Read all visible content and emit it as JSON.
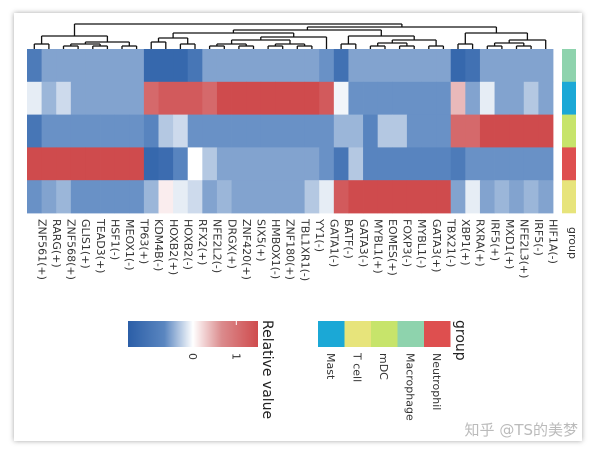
{
  "chart_data": {
    "type": "heatmap",
    "columns": [
      "ZNF561(+)",
      "RARG(+)",
      "ZNF568(+)",
      "GLIS1(+)",
      "TEAD3(+)",
      "HSF1(-)",
      "MEOX1(-)",
      "TP63(+)",
      "KDM4B(-)",
      "HOXB2(+)",
      "HOXB2(-)",
      "RFX2(+)",
      "NFE2L2(-)",
      "DRGX(+)",
      "ZNF420(+)",
      "SIX5(+)",
      "HMBOX1(-)",
      "ZNF180(+)",
      "TBL1XR1(-)",
      "YY1(-)",
      "GATA1(-)",
      "BATF(-)",
      "GATA3(-)",
      "MYBL1(+)",
      "EOMES(+)",
      "FOXP3(-)",
      "MYBL1(-)",
      "GATA3(+)",
      "TBX21(-)",
      "XBP1(+)",
      "RXRA(+)",
      "IRF5(+)",
      "MXD1(+)",
      "NFE2L3(+)",
      "IRF5(-)",
      "HIF1A(-)"
    ],
    "rows": [
      "Mast",
      "Neutrophil",
      "Macrophage",
      "mDC",
      "T cell"
    ],
    "values": [
      [
        -0.9,
        -0.5,
        -0.5,
        -0.5,
        -0.5,
        -0.5,
        -0.5,
        -0.5,
        -1.3,
        -1.3,
        -1.3,
        -1.0,
        -0.5,
        -0.5,
        -0.5,
        -0.5,
        -0.5,
        -0.5,
        -0.5,
        -0.5,
        -0.6,
        -1.1,
        -0.5,
        -0.5,
        -0.5,
        -0.5,
        -0.5,
        -0.5,
        -0.5,
        -1.3,
        -1.1,
        -0.5,
        -0.5,
        -0.5,
        -0.5,
        -0.5
      ],
      [
        -0.1,
        -0.4,
        -0.2,
        -0.5,
        -0.5,
        -0.5,
        -0.5,
        -0.5,
        1.1,
        1.3,
        1.3,
        1.3,
        1.1,
        1.5,
        1.5,
        1.5,
        1.5,
        1.5,
        1.5,
        1.5,
        1.3,
        -0.05,
        -0.6,
        -0.6,
        -0.6,
        -0.6,
        -0.6,
        -0.6,
        -0.6,
        0.4,
        -0.5,
        -0.1,
        -0.5,
        -0.5,
        -0.3,
        -0.5
      ],
      [
        -1.0,
        -0.6,
        -0.6,
        -0.6,
        -0.6,
        -0.6,
        -0.6,
        -0.6,
        -0.7,
        -0.3,
        -0.2,
        -0.6,
        -0.6,
        -0.6,
        -0.6,
        -0.6,
        -0.6,
        -0.6,
        -0.6,
        -0.6,
        -0.6,
        -0.4,
        -0.4,
        -0.7,
        -0.3,
        -0.3,
        -0.6,
        -0.6,
        -0.6,
        1.1,
        1.1,
        1.5,
        1.5,
        1.5,
        1.5,
        1.5
      ],
      [
        1.5,
        1.5,
        1.5,
        1.5,
        1.5,
        1.5,
        1.5,
        1.5,
        -1.3,
        -1.2,
        -0.7,
        0.0,
        -0.3,
        -0.5,
        -0.5,
        -0.5,
        -0.5,
        -0.5,
        -0.5,
        -0.5,
        -0.6,
        -1.0,
        -0.3,
        -0.7,
        -0.7,
        -0.7,
        -0.7,
        -0.7,
        -0.7,
        -0.9,
        -0.6,
        -0.6,
        -0.6,
        -0.6,
        -0.6,
        -0.6
      ],
      [
        -0.6,
        -0.5,
        -0.4,
        -0.6,
        -0.6,
        -0.6,
        -0.6,
        -0.6,
        -0.4,
        0.1,
        -0.1,
        -0.2,
        -0.5,
        -0.4,
        -0.5,
        -0.5,
        -0.5,
        -0.5,
        -0.5,
        -0.3,
        -0.1,
        1.3,
        1.5,
        1.5,
        1.5,
        1.5,
        1.5,
        1.5,
        1.5,
        -0.5,
        -0.1,
        -0.5,
        -0.4,
        -0.5,
        -0.4,
        -0.5
      ]
    ],
    "row_group_label": "group",
    "colorbar": {
      "title": "Relative value",
      "ticks": [
        0,
        1
      ],
      "range": [
        -1.5,
        1.5
      ],
      "low_color": "#2b5ea7",
      "mid_color": "#ffffff",
      "high_color": "#cf4b4d"
    },
    "legend": {
      "title": "group",
      "entries": [
        {
          "label": "Mast",
          "color": "#1ba8d6"
        },
        {
          "label": "T cell",
          "color": "#e7e47b"
        },
        {
          "label": "mDC",
          "color": "#c7e46b"
        },
        {
          "label": "Macrophage",
          "color": "#8ed3ad"
        },
        {
          "label": "Neutrophil",
          "color": "#de4f4f"
        }
      ]
    },
    "row_annotation_order": [
      "Macrophage",
      "Mast",
      "mDC",
      "Neutrophil",
      "T cell"
    ]
  },
  "watermark": "知乎 @TS的美梦"
}
